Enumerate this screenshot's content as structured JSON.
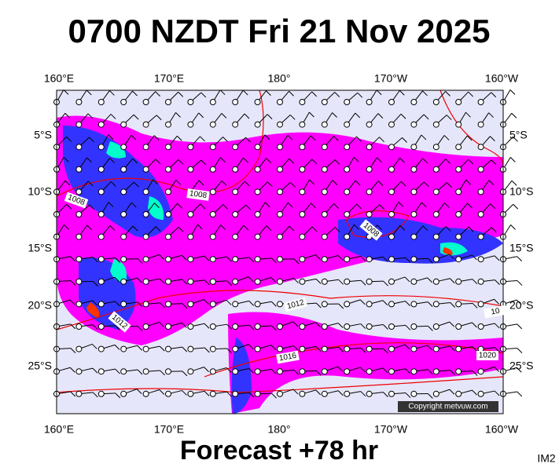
{
  "title": "0700 NZDT Fri 21 Nov 2025",
  "top_axis": [
    "160°E",
    "170°E",
    "180°",
    "170°W",
    "160°W"
  ],
  "bottom_axis": [
    "160°E",
    "170°E",
    "180°",
    "170°W",
    "160°W"
  ],
  "left_axis": [
    "5°S",
    "10°S",
    "15°S",
    "20°S",
    "25°S"
  ],
  "right_axis": [
    "5°S",
    "10°S",
    "15°S",
    "20°S",
    "25°S"
  ],
  "isobar_labels": [
    "1008",
    "1008",
    "1008",
    "1012",
    "1012",
    "1016",
    "1020",
    "10"
  ],
  "copyright": "Copyright metvuw.com",
  "footer": "Forecast +78 hr",
  "image_id": "IM2"
}
